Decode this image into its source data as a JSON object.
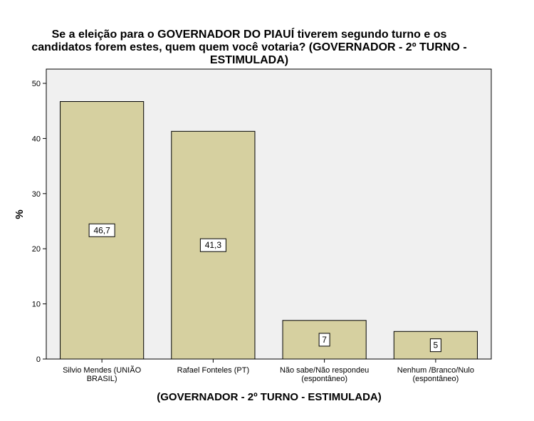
{
  "chart_data": {
    "type": "bar",
    "title_lines": [
      "Se a eleição para o GOVERNADOR DO PIAUÍ tiverem segundo turno e os",
      "candidatos forem estes, quem quem você votaria? (GOVERNADOR - 2º TURNO -",
      "ESTIMULADA)"
    ],
    "categories": [
      [
        "Silvio Mendes (UNIÃO",
        "BRASIL)"
      ],
      [
        "Rafael Fonteles (PT)"
      ],
      [
        "Não sabe/Não respondeu",
        "(espontâneo)"
      ],
      [
        "Nenhum /Branco/Nulo",
        "(espontâneo)"
      ]
    ],
    "values": [
      46.7,
      41.3,
      7,
      5
    ],
    "data_labels": [
      "46,7",
      "41,3",
      "7",
      "5"
    ],
    "xlabel": "(GOVERNADOR - 2º TURNO - ESTIMULADA)",
    "ylabel": "%",
    "ylim": [
      0,
      50
    ],
    "yticks": [
      0,
      10,
      20,
      30,
      40,
      50
    ],
    "bar_color": "#d6d0a0",
    "plot_background": "#f0f0f0",
    "grid": false,
    "legend": "none"
  }
}
